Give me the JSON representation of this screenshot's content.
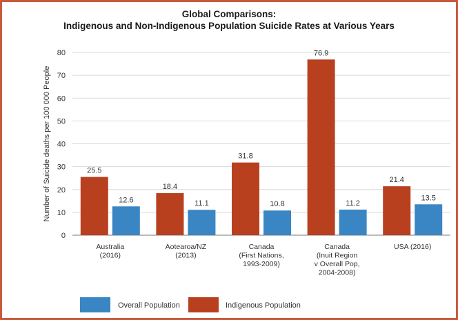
{
  "chart_data": {
    "type": "bar",
    "title_line1": "Global Comparisons:",
    "title_line2": "Indigenous and Non-Indigenous Population Suicide Rates at Various Years",
    "ylabel": "Number of Suicide deaths per 100 000 People",
    "ylim": [
      0,
      80
    ],
    "yticks": [
      0,
      10,
      20,
      30,
      40,
      50,
      60,
      70,
      80
    ],
    "grid": true,
    "legend_position": "bottom-left",
    "categories": [
      [
        "Australia",
        "(2016)"
      ],
      [
        "Aotearoa/NZ",
        "(2013)"
      ],
      [
        "Canada",
        "(First Nations,",
        "1993-2009)"
      ],
      [
        "Canada",
        "(Inuit Region",
        "v Overall Pop,",
        "2004-2008)"
      ],
      [
        "USA (2016)"
      ]
    ],
    "series": [
      {
        "name": "Indigenous Population",
        "color": "#b8401f",
        "values": [
          25.5,
          18.4,
          31.8,
          76.9,
          21.4
        ],
        "labels": [
          "25.5",
          "18.4",
          "31.8",
          "76.9",
          "21.4"
        ]
      },
      {
        "name": "Overall Population",
        "color": "#3a86c4",
        "values": [
          12.6,
          11.1,
          10.8,
          11.2,
          13.5
        ],
        "labels": [
          "12.6",
          "11.1",
          "10.8",
          "11.2",
          "13.5"
        ]
      }
    ],
    "legend_order": [
      "Overall Population",
      "Indigenous Population"
    ]
  }
}
